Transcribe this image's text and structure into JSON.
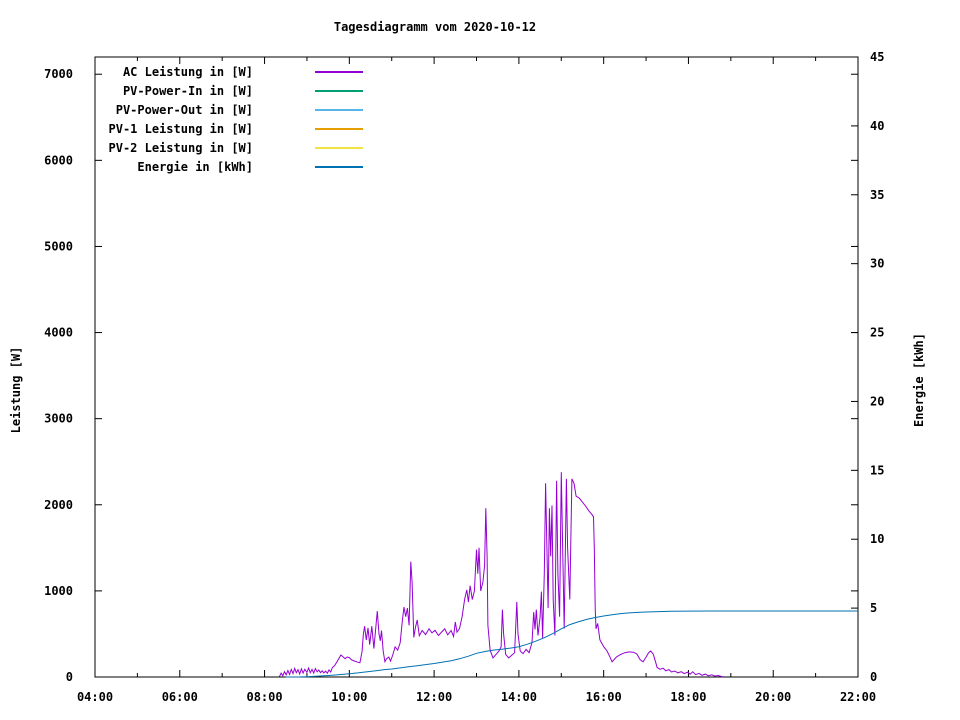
{
  "chart_data": {
    "type": "line",
    "title": "Tagesdiagramm vom 2020-10-12",
    "grid": false,
    "legend_position": "top-left-inside",
    "x_axis": {
      "label": "",
      "unit": "time",
      "range": [
        4,
        22
      ],
      "major_ticks": [
        4,
        6,
        8,
        10,
        12,
        14,
        16,
        18,
        20,
        22
      ],
      "minor_ticks": [
        5,
        7,
        9,
        11,
        13,
        15,
        17,
        19,
        21
      ],
      "tick_labels": [
        "04:00",
        "06:00",
        "08:00",
        "10:00",
        "12:00",
        "14:00",
        "16:00",
        "18:00",
        "20:00",
        "22:00"
      ]
    },
    "y_axis": {
      "label": "Leistung [W]",
      "range": [
        0,
        7200
      ],
      "ticks": [
        0,
        1000,
        2000,
        3000,
        4000,
        5000,
        6000,
        7000
      ],
      "tick_labels": [
        "0",
        "1000",
        "2000",
        "3000",
        "4000",
        "5000",
        "6000",
        "7000"
      ]
    },
    "y2_axis": {
      "label": "Energie [kWh]",
      "range": [
        0,
        45
      ],
      "ticks": [
        0,
        5,
        10,
        15,
        20,
        25,
        30,
        35,
        40,
        45
      ],
      "tick_labels": [
        "0",
        "5",
        "10",
        "15",
        "20",
        "25",
        "30",
        "35",
        "40",
        "45"
      ]
    },
    "series": [
      {
        "name": "AC Leistung in [W]",
        "color": "#9400d3",
        "axis": "y1",
        "points": [
          [
            8.35,
            5
          ],
          [
            8.39,
            45
          ],
          [
            8.43,
            15
          ],
          [
            8.47,
            62
          ],
          [
            8.51,
            25
          ],
          [
            8.55,
            75
          ],
          [
            8.59,
            30
          ],
          [
            8.63,
            88
          ],
          [
            8.67,
            40
          ],
          [
            8.71,
            100
          ],
          [
            8.75,
            50
          ],
          [
            8.79,
            85
          ],
          [
            8.83,
            35
          ],
          [
            8.87,
            95
          ],
          [
            8.91,
            45
          ],
          [
            8.95,
            90
          ],
          [
            9.0,
            55
          ],
          [
            9.04,
            105
          ],
          [
            9.08,
            50
          ],
          [
            9.12,
            88
          ],
          [
            9.16,
            45
          ],
          [
            9.2,
            98
          ],
          [
            9.24,
            60
          ],
          [
            9.28,
            80
          ],
          [
            9.32,
            50
          ],
          [
            9.36,
            72
          ],
          [
            9.4,
            48
          ],
          [
            9.44,
            68
          ],
          [
            9.48,
            44
          ],
          [
            9.52,
            82
          ],
          [
            9.56,
            58
          ],
          [
            9.6,
            110
          ],
          [
            9.65,
            130
          ],
          [
            9.7,
            170
          ],
          [
            9.75,
            210
          ],
          [
            9.8,
            255
          ],
          [
            9.85,
            235
          ],
          [
            9.9,
            212
          ],
          [
            9.95,
            232
          ],
          [
            10.0,
            225
          ],
          [
            10.05,
            200
          ],
          [
            10.12,
            186
          ],
          [
            10.2,
            172
          ],
          [
            10.25,
            165
          ],
          [
            10.3,
            300
          ],
          [
            10.33,
            490
          ],
          [
            10.36,
            590
          ],
          [
            10.4,
            430
          ],
          [
            10.44,
            570
          ],
          [
            10.48,
            375
          ],
          [
            10.53,
            590
          ],
          [
            10.58,
            330
          ],
          [
            10.63,
            600
          ],
          [
            10.66,
            765
          ],
          [
            10.7,
            500
          ],
          [
            10.73,
            420
          ],
          [
            10.76,
            540
          ],
          [
            10.8,
            300
          ],
          [
            10.84,
            178
          ],
          [
            10.88,
            212
          ],
          [
            10.93,
            232
          ],
          [
            10.97,
            186
          ],
          [
            11.02,
            250
          ],
          [
            11.08,
            350
          ],
          [
            11.14,
            312
          ],
          [
            11.2,
            400
          ],
          [
            11.25,
            650
          ],
          [
            11.29,
            812
          ],
          [
            11.33,
            700
          ],
          [
            11.37,
            800
          ],
          [
            11.41,
            600
          ],
          [
            11.45,
            1340
          ],
          [
            11.48,
            1100
          ],
          [
            11.52,
            460
          ],
          [
            11.56,
            580
          ],
          [
            11.6,
            662
          ],
          [
            11.65,
            480
          ],
          [
            11.72,
            540
          ],
          [
            11.8,
            492
          ],
          [
            11.88,
            560
          ],
          [
            11.95,
            512
          ],
          [
            12.02,
            542
          ],
          [
            12.1,
            482
          ],
          [
            12.18,
            522
          ],
          [
            12.25,
            560
          ],
          [
            12.32,
            490
          ],
          [
            12.4,
            540
          ],
          [
            12.46,
            470
          ],
          [
            12.5,
            640
          ],
          [
            12.54,
            520
          ],
          [
            12.6,
            562
          ],
          [
            12.66,
            700
          ],
          [
            12.72,
            900
          ],
          [
            12.77,
            1012
          ],
          [
            12.81,
            870
          ],
          [
            12.85,
            1060
          ],
          [
            12.9,
            900
          ],
          [
            12.95,
            1000
          ],
          [
            13.0,
            1480
          ],
          [
            13.03,
            1200
          ],
          [
            13.06,
            1500
          ],
          [
            13.1,
            1000
          ],
          [
            13.15,
            1100
          ],
          [
            13.19,
            1300
          ],
          [
            13.22,
            1960
          ],
          [
            13.25,
            1400
          ],
          [
            13.27,
            600
          ],
          [
            13.32,
            312
          ],
          [
            13.39,
            222
          ],
          [
            13.46,
            262
          ],
          [
            13.53,
            302
          ],
          [
            13.58,
            350
          ],
          [
            13.61,
            782
          ],
          [
            13.64,
            500
          ],
          [
            13.69,
            262
          ],
          [
            13.76,
            222
          ],
          [
            13.83,
            252
          ],
          [
            13.9,
            282
          ],
          [
            13.95,
            872
          ],
          [
            13.98,
            500
          ],
          [
            14.03,
            302
          ],
          [
            14.1,
            272
          ],
          [
            14.17,
            322
          ],
          [
            14.24,
            282
          ],
          [
            14.31,
            400
          ],
          [
            14.35,
            752
          ],
          [
            14.38,
            552
          ],
          [
            14.41,
            782
          ],
          [
            14.45,
            482
          ],
          [
            14.5,
            700
          ],
          [
            14.53,
            992
          ],
          [
            14.56,
            452
          ],
          [
            14.6,
            1200
          ],
          [
            14.63,
            2250
          ],
          [
            14.66,
            1500
          ],
          [
            14.69,
            800
          ],
          [
            14.72,
            1960
          ],
          [
            14.75,
            1400
          ],
          [
            14.78,
            1992
          ],
          [
            14.81,
            900
          ],
          [
            14.85,
            482
          ],
          [
            14.89,
            2280
          ],
          [
            14.92,
            1200
          ],
          [
            14.96,
            700
          ],
          [
            15.0,
            2380
          ],
          [
            15.03,
            1600
          ],
          [
            15.07,
            562
          ],
          [
            15.12,
            2300
          ],
          [
            15.15,
            1500
          ],
          [
            15.2,
            900
          ],
          [
            15.25,
            2300
          ],
          [
            15.3,
            2250
          ],
          [
            15.35,
            2100
          ],
          [
            15.42,
            2080
          ],
          [
            15.5,
            2030
          ],
          [
            15.58,
            1980
          ],
          [
            15.65,
            1930
          ],
          [
            15.72,
            1890
          ],
          [
            15.76,
            1860
          ],
          [
            15.78,
            1500
          ],
          [
            15.8,
            800
          ],
          [
            15.82,
            560
          ],
          [
            15.86,
            622
          ],
          [
            15.91,
            432
          ],
          [
            16.0,
            352
          ],
          [
            16.08,
            302
          ],
          [
            16.14,
            240
          ],
          [
            16.2,
            176
          ],
          [
            16.3,
            232
          ],
          [
            16.4,
            262
          ],
          [
            16.5,
            282
          ],
          [
            16.6,
            292
          ],
          [
            16.7,
            288
          ],
          [
            16.78,
            270
          ],
          [
            16.86,
            202
          ],
          [
            16.93,
            176
          ],
          [
            17.0,
            232
          ],
          [
            17.06,
            282
          ],
          [
            17.11,
            302
          ],
          [
            17.17,
            265
          ],
          [
            17.22,
            182
          ],
          [
            17.26,
            112
          ],
          [
            17.33,
            90
          ],
          [
            17.4,
            102
          ],
          [
            17.47,
            72
          ],
          [
            17.54,
            86
          ],
          [
            17.6,
            58
          ],
          [
            17.68,
            70
          ],
          [
            17.75,
            48
          ],
          [
            17.83,
            62
          ],
          [
            17.9,
            40
          ],
          [
            17.98,
            56
          ],
          [
            18.04,
            32
          ],
          [
            18.1,
            60
          ],
          [
            18.17,
            28
          ],
          [
            18.25,
            42
          ],
          [
            18.32,
            20
          ],
          [
            18.4,
            34
          ],
          [
            18.47,
            14
          ],
          [
            18.55,
            26
          ],
          [
            18.62,
            10
          ],
          [
            18.7,
            18
          ],
          [
            18.78,
            6
          ],
          [
            18.82,
            2
          ]
        ]
      },
      {
        "name": "PV-Power-In in [W]",
        "color": "#009e73",
        "axis": "y1",
        "points": []
      },
      {
        "name": "PV-Power-Out in [W]",
        "color": "#56b4e9",
        "axis": "y1",
        "points": []
      },
      {
        "name": "PV-1 Leistung in [W]",
        "color": "#e69f00",
        "axis": "y1",
        "points": []
      },
      {
        "name": "PV-2 Leistung in [W]",
        "color": "#f0e442",
        "axis": "y1",
        "points": []
      },
      {
        "name": "Energie in [kWh]",
        "color": "#0072b2",
        "axis": "y2",
        "points": [
          [
            8.5,
            0
          ],
          [
            8.85,
            0.01
          ],
          [
            9.0,
            0.02
          ],
          [
            9.2,
            0.05
          ],
          [
            9.4,
            0.09
          ],
          [
            9.6,
            0.13
          ],
          [
            9.8,
            0.18
          ],
          [
            10.0,
            0.24
          ],
          [
            10.2,
            0.3
          ],
          [
            10.4,
            0.37
          ],
          [
            10.6,
            0.44
          ],
          [
            10.8,
            0.52
          ],
          [
            11.0,
            0.58
          ],
          [
            11.2,
            0.66
          ],
          [
            11.4,
            0.75
          ],
          [
            11.6,
            0.82
          ],
          [
            11.8,
            0.9
          ],
          [
            12.0,
            0.98
          ],
          [
            12.2,
            1.08
          ],
          [
            12.4,
            1.18
          ],
          [
            12.6,
            1.32
          ],
          [
            12.8,
            1.5
          ],
          [
            13.0,
            1.72
          ],
          [
            13.2,
            1.85
          ],
          [
            13.4,
            1.95
          ],
          [
            13.6,
            2.02
          ],
          [
            13.8,
            2.1
          ],
          [
            14.0,
            2.2
          ],
          [
            14.2,
            2.38
          ],
          [
            14.4,
            2.6
          ],
          [
            14.6,
            2.85
          ],
          [
            14.8,
            3.15
          ],
          [
            15.0,
            3.5
          ],
          [
            15.2,
            3.8
          ],
          [
            15.4,
            4.0
          ],
          [
            15.6,
            4.18
          ],
          [
            15.8,
            4.32
          ],
          [
            16.0,
            4.43
          ],
          [
            16.2,
            4.52
          ],
          [
            16.4,
            4.6
          ],
          [
            16.6,
            4.65
          ],
          [
            16.8,
            4.69
          ],
          [
            17.0,
            4.72
          ],
          [
            17.3,
            4.75
          ],
          [
            17.6,
            4.77
          ],
          [
            18.0,
            4.78
          ],
          [
            18.5,
            4.79
          ],
          [
            19.0,
            4.79
          ],
          [
            20.0,
            4.79
          ],
          [
            21.0,
            4.79
          ],
          [
            22.0,
            4.79
          ]
        ]
      }
    ]
  }
}
